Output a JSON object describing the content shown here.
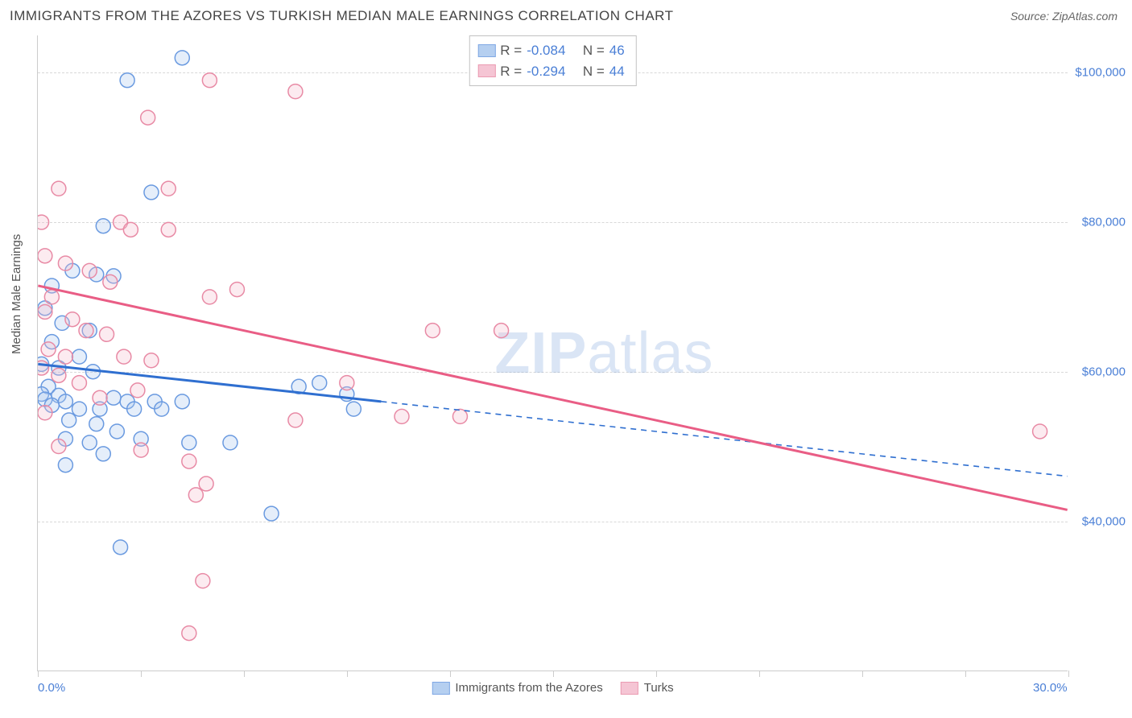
{
  "header": {
    "title": "IMMIGRANTS FROM THE AZORES VS TURKISH MEDIAN MALE EARNINGS CORRELATION CHART",
    "source_prefix": "Source: ",
    "source_name": "ZipAtlas.com"
  },
  "chart": {
    "type": "scatter",
    "y_axis_label": "Median Male Earnings",
    "watermark_bold": "ZIP",
    "watermark_light": "atlas",
    "xlim": [
      0,
      30
    ],
    "ylim": [
      20000,
      105000
    ],
    "x_ticks": [
      0,
      3,
      6,
      9,
      12,
      15,
      18,
      21,
      24,
      27,
      30
    ],
    "x_tick_labels_shown": {
      "0": "0.0%",
      "30": "30.0%"
    },
    "y_grid": [
      40000,
      60000,
      80000,
      100000
    ],
    "y_tick_labels": [
      "$40,000",
      "$60,000",
      "$80,000",
      "$100,000"
    ],
    "background_color": "#ffffff",
    "grid_color": "#d8d8d8",
    "axis_color": "#cccccc",
    "tick_label_color": "#4a7fd6",
    "marker_radius": 9,
    "marker_stroke_width": 1.5,
    "marker_fill_opacity": 0.3,
    "trend_line_width": 3,
    "trend_dash_width": 1.6,
    "series": [
      {
        "id": "azores",
        "label": "Immigrants from the Azores",
        "color_stroke": "#6a9ae0",
        "color_fill": "#a9c7ee",
        "trend_color": "#2f6fd0",
        "R": "-0.084",
        "N": "46",
        "trend_solid": {
          "x1": 0,
          "y1": 61000,
          "x2": 10,
          "y2": 56000
        },
        "trend_dashed": {
          "x1": 10,
          "y1": 56000,
          "x2": 30,
          "y2": 46000
        },
        "points": [
          [
            4.2,
            102000
          ],
          [
            2.6,
            99000
          ],
          [
            3.3,
            84000
          ],
          [
            1.9,
            79500
          ],
          [
            1.0,
            73500
          ],
          [
            1.7,
            73000
          ],
          [
            2.2,
            72800
          ],
          [
            0.4,
            71500
          ],
          [
            0.2,
            68500
          ],
          [
            0.7,
            66500
          ],
          [
            1.5,
            65500
          ],
          [
            0.4,
            64000
          ],
          [
            1.2,
            62000
          ],
          [
            0.1,
            61000
          ],
          [
            0.6,
            60500
          ],
          [
            1.6,
            60000
          ],
          [
            0.3,
            58000
          ],
          [
            0.1,
            57000
          ],
          [
            0.6,
            56800
          ],
          [
            2.2,
            56500
          ],
          [
            0.2,
            56300
          ],
          [
            0.8,
            56000
          ],
          [
            2.6,
            56000
          ],
          [
            3.4,
            56000
          ],
          [
            4.2,
            56000
          ],
          [
            0.4,
            55500
          ],
          [
            1.2,
            55000
          ],
          [
            1.8,
            55000
          ],
          [
            2.8,
            55000
          ],
          [
            3.6,
            55000
          ],
          [
            7.6,
            58000
          ],
          [
            8.2,
            58500
          ],
          [
            0.9,
            53500
          ],
          [
            1.7,
            53000
          ],
          [
            2.3,
            52000
          ],
          [
            0.8,
            51000
          ],
          [
            1.5,
            50500
          ],
          [
            3.0,
            51000
          ],
          [
            4.4,
            50500
          ],
          [
            5.6,
            50500
          ],
          [
            0.8,
            47500
          ],
          [
            1.9,
            49000
          ],
          [
            2.4,
            36500
          ],
          [
            6.8,
            41000
          ],
          [
            9.0,
            57000
          ],
          [
            9.2,
            55000
          ]
        ]
      },
      {
        "id": "turks",
        "label": "Turks",
        "color_stroke": "#e88aa5",
        "color_fill": "#f4bccd",
        "trend_color": "#e95d85",
        "R": "-0.294",
        "N": "44",
        "trend_solid": {
          "x1": 0,
          "y1": 71500,
          "x2": 30,
          "y2": 41500
        },
        "trend_dashed": null,
        "points": [
          [
            5.0,
            99000
          ],
          [
            7.5,
            97500
          ],
          [
            3.2,
            94000
          ],
          [
            0.6,
            84500
          ],
          [
            3.8,
            84500
          ],
          [
            0.1,
            80000
          ],
          [
            2.4,
            80000
          ],
          [
            2.7,
            79000
          ],
          [
            3.8,
            79000
          ],
          [
            0.2,
            75500
          ],
          [
            0.8,
            74500
          ],
          [
            1.5,
            73500
          ],
          [
            2.1,
            72000
          ],
          [
            5.0,
            70000
          ],
          [
            5.8,
            71000
          ],
          [
            0.4,
            70000
          ],
          [
            0.2,
            68000
          ],
          [
            1.0,
            67000
          ],
          [
            1.4,
            65500
          ],
          [
            2.0,
            65000
          ],
          [
            11.5,
            65500
          ],
          [
            13.5,
            65500
          ],
          [
            0.3,
            63000
          ],
          [
            0.8,
            62000
          ],
          [
            2.5,
            62000
          ],
          [
            3.3,
            61500
          ],
          [
            0.1,
            60500
          ],
          [
            0.6,
            59500
          ],
          [
            1.2,
            58500
          ],
          [
            9.0,
            58500
          ],
          [
            0.2,
            54500
          ],
          [
            7.5,
            53500
          ],
          [
            10.6,
            54000
          ],
          [
            12.3,
            54000
          ],
          [
            29.2,
            52000
          ],
          [
            0.6,
            50000
          ],
          [
            3.0,
            49500
          ],
          [
            4.4,
            48000
          ],
          [
            4.9,
            45000
          ],
          [
            4.6,
            43500
          ],
          [
            4.8,
            32000
          ],
          [
            4.4,
            25000
          ],
          [
            2.9,
            57500
          ],
          [
            1.8,
            56500
          ]
        ]
      }
    ],
    "legend_top": {
      "r_label": "R =",
      "n_label": "N ="
    }
  }
}
